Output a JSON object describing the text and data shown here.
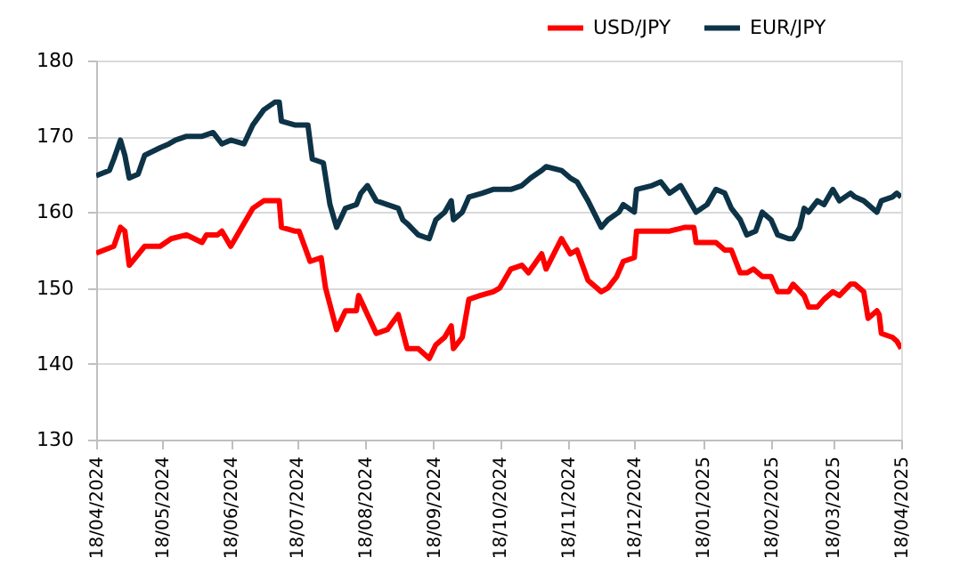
{
  "chart_data": {
    "type": "line",
    "legend": "top right",
    "grid": "y",
    "marker": "none",
    "line_style": "solid",
    "xlim": [
      "2024-04-18",
      "2025-04-18"
    ],
    "xticks": [
      {
        "value": "2024-04-18",
        "label": "18/04/2024"
      },
      {
        "value": "2024-05-18",
        "label": "18/05/2024"
      },
      {
        "value": "2024-06-18",
        "label": "18/06/2024"
      },
      {
        "value": "2024-07-18",
        "label": "18/07/2024"
      },
      {
        "value": "2024-08-18",
        "label": "18/08/2024"
      },
      {
        "value": "2024-09-18",
        "label": "18/09/2024"
      },
      {
        "value": "2024-10-18",
        "label": "18/10/2024"
      },
      {
        "value": "2024-11-18",
        "label": "18/11/2024"
      },
      {
        "value": "2024-12-18",
        "label": "18/12/2024"
      },
      {
        "value": "2025-01-18",
        "label": "18/01/2025"
      },
      {
        "value": "2025-02-18",
        "label": "18/02/2025"
      },
      {
        "value": "2025-03-18",
        "label": "18/03/2025"
      },
      {
        "value": "2025-04-18",
        "label": "18/04/2025"
      }
    ],
    "ylim": [
      130,
      180
    ],
    "yticks": [
      130,
      140,
      150,
      160,
      170,
      180
    ],
    "series": [
      {
        "name": "USD/JPY",
        "color": "#ff0000",
        "x": [
          "2024-04-18",
          "2024-04-26",
          "2024-04-29",
          "2024-05-01",
          "2024-05-03",
          "2024-05-10",
          "2024-05-17",
          "2024-05-22",
          "2024-05-29",
          "2024-06-05",
          "2024-06-07",
          "2024-06-12",
          "2024-06-14",
          "2024-06-18",
          "2024-06-21",
          "2024-06-28",
          "2024-07-03",
          "2024-07-10",
          "2024-07-11",
          "2024-07-17",
          "2024-07-19",
          "2024-07-24",
          "2024-07-29",
          "2024-07-31",
          "2024-08-05",
          "2024-08-09",
          "2024-08-14",
          "2024-08-15",
          "2024-08-19",
          "2024-08-23",
          "2024-08-28",
          "2024-09-02",
          "2024-09-06",
          "2024-09-11",
          "2024-09-16",
          "2024-09-19",
          "2024-09-23",
          "2024-09-26",
          "2024-09-27",
          "2024-10-01",
          "2024-10-04",
          "2024-10-09",
          "2024-10-15",
          "2024-10-18",
          "2024-10-23",
          "2024-10-28",
          "2024-10-31",
          "2024-11-06",
          "2024-11-08",
          "2024-11-15",
          "2024-11-19",
          "2024-11-22",
          "2024-11-27",
          "2024-12-03",
          "2024-12-06",
          "2024-12-10",
          "2024-12-13",
          "2024-12-18",
          "2024-12-19",
          "2024-12-26",
          "2025-01-03",
          "2025-01-10",
          "2025-01-14",
          "2025-01-15",
          "2025-01-20",
          "2025-01-24",
          "2025-01-28",
          "2025-01-31",
          "2025-02-04",
          "2025-02-07",
          "2025-02-10",
          "2025-02-14",
          "2025-02-18",
          "2025-02-21",
          "2025-02-26",
          "2025-02-28",
          "2025-03-05",
          "2025-03-07",
          "2025-03-11",
          "2025-03-14",
          "2025-03-18",
          "2025-03-21",
          "2025-03-26",
          "2025-03-28",
          "2025-04-01",
          "2025-04-03",
          "2025-04-07",
          "2025-04-08",
          "2025-04-09",
          "2025-04-14",
          "2025-04-16",
          "2025-04-18"
        ],
        "values": [
          154.6,
          155.5,
          158,
          157.5,
          153,
          155.5,
          155.5,
          156.5,
          157,
          156,
          157,
          157,
          157.5,
          155.5,
          157,
          160.5,
          161.5,
          161.5,
          158,
          157.5,
          157.5,
          153.5,
          154,
          150,
          144.5,
          147,
          147,
          149,
          146.5,
          144,
          144.5,
          146.5,
          142,
          142,
          140.7,
          142.5,
          143.5,
          145,
          142,
          143.5,
          148.5,
          149,
          149.5,
          150,
          152.5,
          153,
          152,
          154.5,
          152.5,
          156.5,
          154.5,
          155,
          151,
          149.5,
          150,
          151.5,
          153.5,
          154,
          157.5,
          157.5,
          157.5,
          158,
          158,
          156,
          156,
          156,
          155,
          155,
          152,
          152,
          152.5,
          151.5,
          151.5,
          149.5,
          149.5,
          150.5,
          149,
          147.5,
          147.5,
          148.5,
          149.5,
          149,
          150.5,
          150.5,
          149.5,
          146,
          147,
          146.5,
          144,
          143.5,
          143,
          142
        ]
      },
      {
        "name": "EUR/JPY",
        "color": "#0d3347",
        "x": [
          "2024-04-18",
          "2024-04-24",
          "2024-04-26",
          "2024-04-29",
          "2024-05-01",
          "2024-05-03",
          "2024-05-07",
          "2024-05-10",
          "2024-05-17",
          "2024-05-21",
          "2024-05-24",
          "2024-05-29",
          "2024-06-05",
          "2024-06-10",
          "2024-06-14",
          "2024-06-18",
          "2024-06-24",
          "2024-06-28",
          "2024-07-03",
          "2024-07-08",
          "2024-07-10",
          "2024-07-11",
          "2024-07-17",
          "2024-07-23",
          "2024-07-25",
          "2024-07-30",
          "2024-08-02",
          "2024-08-05",
          "2024-08-09",
          "2024-08-14",
          "2024-08-16",
          "2024-08-19",
          "2024-08-23",
          "2024-08-28",
          "2024-09-02",
          "2024-09-04",
          "2024-09-06",
          "2024-09-11",
          "2024-09-16",
          "2024-09-19",
          "2024-09-23",
          "2024-09-26",
          "2024-09-27",
          "2024-10-01",
          "2024-10-04",
          "2024-10-10",
          "2024-10-15",
          "2024-10-18",
          "2024-10-23",
          "2024-10-28",
          "2024-11-01",
          "2024-11-06",
          "2024-11-08",
          "2024-11-15",
          "2024-11-19",
          "2024-11-22",
          "2024-11-27",
          "2024-12-03",
          "2024-12-06",
          "2024-12-11",
          "2024-12-13",
          "2024-12-18",
          "2024-12-19",
          "2024-12-26",
          "2024-12-30",
          "2025-01-03",
          "2025-01-08",
          "2025-01-10",
          "2025-01-15",
          "2025-01-20",
          "2025-01-24",
          "2025-01-28",
          "2025-01-31",
          "2025-02-04",
          "2025-02-07",
          "2025-02-11",
          "2025-02-14",
          "2025-02-18",
          "2025-02-21",
          "2025-02-26",
          "2025-02-28",
          "2025-03-03",
          "2025-03-05",
          "2025-03-07",
          "2025-03-11",
          "2025-03-14",
          "2025-03-18",
          "2025-03-21",
          "2025-03-26",
          "2025-03-28",
          "2025-04-01",
          "2025-04-03",
          "2025-04-07",
          "2025-04-09",
          "2025-04-14",
          "2025-04-16",
          "2025-04-18"
        ],
        "values": [
          164.8,
          165.5,
          167,
          169.5,
          167.5,
          164.5,
          165,
          167.5,
          168.5,
          169,
          169.5,
          170,
          170,
          170.5,
          169,
          169.5,
          169,
          171.5,
          173.5,
          174.5,
          174.5,
          172,
          171.5,
          171.5,
          167,
          166.5,
          161,
          158,
          160.5,
          161,
          162.5,
          163.5,
          161.5,
          161,
          160.5,
          159,
          158.5,
          157,
          156.5,
          159,
          160,
          161.5,
          159,
          160,
          162,
          162.5,
          163,
          163,
          163,
          163.5,
          164.5,
          165.5,
          166,
          165.5,
          164.5,
          164,
          161.5,
          158,
          159,
          160,
          161,
          160,
          163,
          163.5,
          164,
          162.5,
          163.5,
          162.5,
          160,
          161,
          163,
          162.5,
          160.5,
          159,
          157,
          157.5,
          160,
          159,
          157,
          156.5,
          156.5,
          158,
          160.5,
          160,
          161.5,
          161,
          163,
          161.5,
          162.5,
          162,
          161.5,
          161,
          160,
          161.5,
          162,
          162.5,
          162
        ]
      }
    ]
  }
}
